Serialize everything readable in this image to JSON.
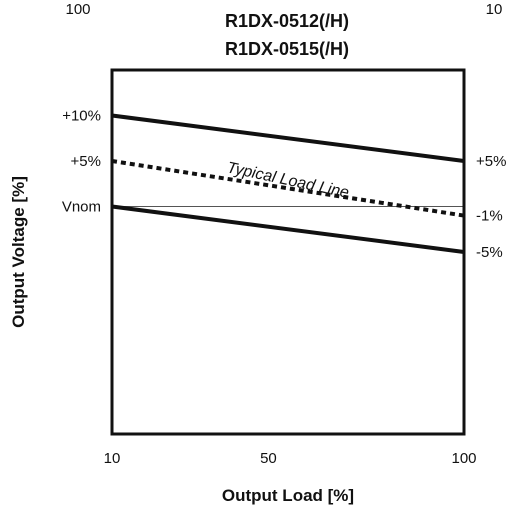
{
  "corner_labels": {
    "left": "100",
    "right": "10"
  },
  "chart_data": {
    "type": "line",
    "title": [
      "R1DX-0512(/H)",
      "R1DX-0515(/H)"
    ],
    "xlabel": "Output Load [%]",
    "ylabel": "Output Voltage [%]",
    "xlim": [
      10,
      100
    ],
    "ylim": [
      -25,
      15
    ],
    "x_scale": "linear",
    "x_ticks": [
      10,
      50,
      100
    ],
    "x_tick_labels": [
      "10",
      "50",
      "100"
    ],
    "y_ticks_left": [
      10,
      5,
      0
    ],
    "y_tick_labels_left": [
      "+10%",
      "+5%",
      "Vnom"
    ],
    "y_ticks_right": [
      5,
      -1,
      -5
    ],
    "y_tick_labels_right": [
      "+5%",
      "-1%",
      "-5%"
    ],
    "reference_line": {
      "y": 0,
      "color": "#555555"
    },
    "series": [
      {
        "x": [
          10,
          100
        ],
        "y": [
          10,
          5
        ],
        "style": "solid",
        "color": "#111111"
      },
      {
        "x": [
          10,
          100
        ],
        "y": [
          5,
          -1
        ],
        "style": "dotted",
        "color": "#111111",
        "label": "Typical Load Line"
      },
      {
        "x": [
          10,
          100
        ],
        "y": [
          0,
          -5
        ],
        "style": "solid",
        "color": "#111111"
      }
    ],
    "grid": false,
    "legend": "none"
  }
}
